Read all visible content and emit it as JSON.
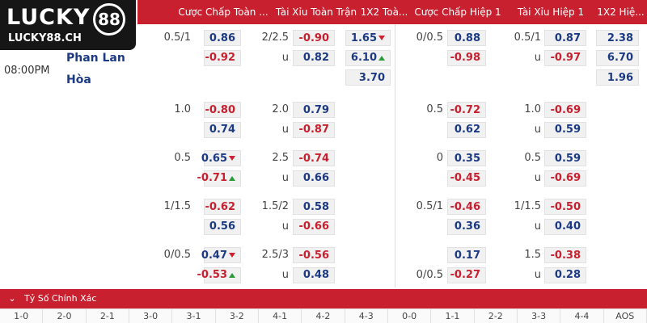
{
  "logo": {
    "brand": "LUCKY",
    "number": "88",
    "domain": "LUCKY88.CH"
  },
  "header": [
    "Cược Chấp Toàn ...",
    "Tài Xỉu Toàn Trận",
    "1X2 Toà...",
    "Cược Chấp Hiệp 1",
    "Tài Xỉu Hiệp 1",
    "1X2 Hiệ..."
  ],
  "match": {
    "time": "08:00PM",
    "team": "Phan Lan",
    "draw": "Hòa"
  },
  "groups": [
    {
      "ft_hdp": [
        {
          "line": "0.5/1",
          "odd": "0.86"
        },
        {
          "odd": "-0.92"
        }
      ],
      "ft_ou": [
        {
          "line": "2/2.5",
          "odd": "-0.90"
        },
        {
          "line": "u",
          "odd": "0.82"
        }
      ],
      "ft_1x2": [
        {
          "odd": "1.65",
          "arrow": "down"
        },
        {
          "odd": "6.10",
          "arrow": "up"
        },
        {
          "odd": "3.70"
        }
      ],
      "h1_hdp": [
        {
          "line": "0/0.5",
          "odd": "0.88"
        },
        {
          "odd": "-0.98"
        }
      ],
      "h1_ou": [
        {
          "line": "0.5/1",
          "odd": "0.87"
        },
        {
          "line": "u",
          "odd": "-0.97"
        }
      ],
      "h1_1x2": [
        {
          "odd": "2.38"
        },
        {
          "odd": "6.70"
        },
        {
          "odd": "1.96"
        }
      ]
    },
    {
      "ft_hdp": [
        {
          "line": "1.0",
          "odd": "-0.80"
        },
        {
          "odd": "0.74"
        }
      ],
      "ft_ou": [
        {
          "line": "2.0",
          "odd": "0.79"
        },
        {
          "line": "u",
          "odd": "-0.87"
        }
      ],
      "h1_hdp": [
        {
          "line": "0.5",
          "odd": "-0.72"
        },
        {
          "odd": "0.62"
        }
      ],
      "h1_ou": [
        {
          "line": "1.0",
          "odd": "-0.69"
        },
        {
          "line": "u",
          "odd": "0.59"
        }
      ]
    },
    {
      "ft_hdp": [
        {
          "line": "0.5",
          "odd": "0.65",
          "arrow": "down"
        },
        {
          "odd": "-0.71",
          "arrow": "up"
        }
      ],
      "ft_ou": [
        {
          "line": "2.5",
          "odd": "-0.74"
        },
        {
          "line": "u",
          "odd": "0.66"
        }
      ],
      "h1_hdp": [
        {
          "line": "0",
          "odd": "0.35"
        },
        {
          "odd": "-0.45"
        }
      ],
      "h1_ou": [
        {
          "line": "0.5",
          "odd": "0.59"
        },
        {
          "line": "u",
          "odd": "-0.69"
        }
      ]
    },
    {
      "ft_hdp": [
        {
          "line": "1/1.5",
          "odd": "-0.62"
        },
        {
          "odd": "0.56"
        }
      ],
      "ft_ou": [
        {
          "line": "1.5/2",
          "odd": "0.58"
        },
        {
          "line": "u",
          "odd": "-0.66"
        }
      ],
      "h1_hdp": [
        {
          "line": "0.5/1",
          "odd": "-0.46"
        },
        {
          "odd": "0.36"
        }
      ],
      "h1_ou": [
        {
          "line": "1/1.5",
          "odd": "-0.50"
        },
        {
          "line": "u",
          "odd": "0.40"
        }
      ]
    },
    {
      "ft_hdp": [
        {
          "line": "0/0.5",
          "odd": "0.47",
          "arrow": "down"
        },
        {
          "odd": "-0.53",
          "arrow": "up"
        }
      ],
      "ft_ou": [
        {
          "line": "2.5/3",
          "odd": "-0.56"
        },
        {
          "line": "u",
          "odd": "0.48"
        }
      ],
      "h1_hdp": [
        {
          "odd": "0.17"
        },
        {
          "line": "0/0.5",
          "odd": "-0.27"
        }
      ],
      "h1_ou": [
        {
          "line": "1.5",
          "odd": "-0.38"
        },
        {
          "line": "u",
          "odd": "0.28"
        }
      ]
    }
  ],
  "section_title": "Tỷ Số Chính Xác",
  "scores": [
    "1-0",
    "2-0",
    "2-1",
    "3-0",
    "3-1",
    "3-2",
    "4-1",
    "4-2",
    "4-3",
    "0-0",
    "1-1",
    "2-2",
    "3-3",
    "4-4",
    "AOS"
  ]
}
